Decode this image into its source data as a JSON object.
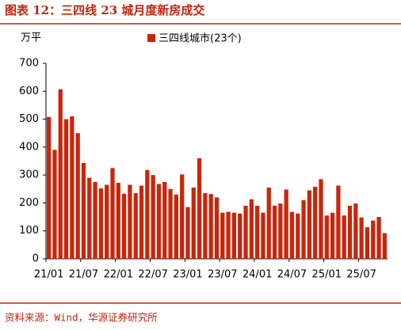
{
  "chart_data": {
    "type": "bar",
    "title": "图表 12：三四线 23 城月度新房成交",
    "y_unit": "万平",
    "source": "资料来源：Wind，华源证券研究所",
    "categories": [
      "21/01",
      null,
      null,
      null,
      null,
      null,
      "21/07",
      null,
      null,
      null,
      null,
      null,
      "22/01",
      null,
      null,
      null,
      null,
      null,
      "22/07",
      null,
      null,
      null,
      null,
      null,
      "23/01",
      null,
      null,
      null,
      null,
      null,
      "23/07",
      null,
      null,
      null,
      null,
      null,
      "24/01",
      null,
      null,
      null,
      null,
      null,
      "24/07",
      null,
      null,
      null,
      null,
      null,
      "25/01",
      null,
      null,
      null,
      null,
      null,
      "25/07",
      null,
      null,
      null,
      null
    ],
    "series": [
      {
        "name": "三四线城市(23个)",
        "color": "#c8260c",
        "values": [
          508,
          390,
          607,
          500,
          510,
          450,
          343,
          290,
          275,
          252,
          265,
          325,
          272,
          233,
          265,
          235,
          262,
          318,
          300,
          268,
          275,
          250,
          230,
          302,
          185,
          255,
          360,
          235,
          232,
          220,
          165,
          168,
          165,
          162,
          190,
          213,
          190,
          165,
          255,
          190,
          198,
          248,
          168,
          162,
          210,
          245,
          258,
          285,
          155,
          165,
          262,
          155,
          190,
          198,
          148,
          113,
          137,
          150,
          92
        ]
      }
    ],
    "ylim": [
      0,
      700
    ],
    "yticks": [
      0,
      100,
      200,
      300,
      400,
      500,
      600,
      700
    ]
  }
}
